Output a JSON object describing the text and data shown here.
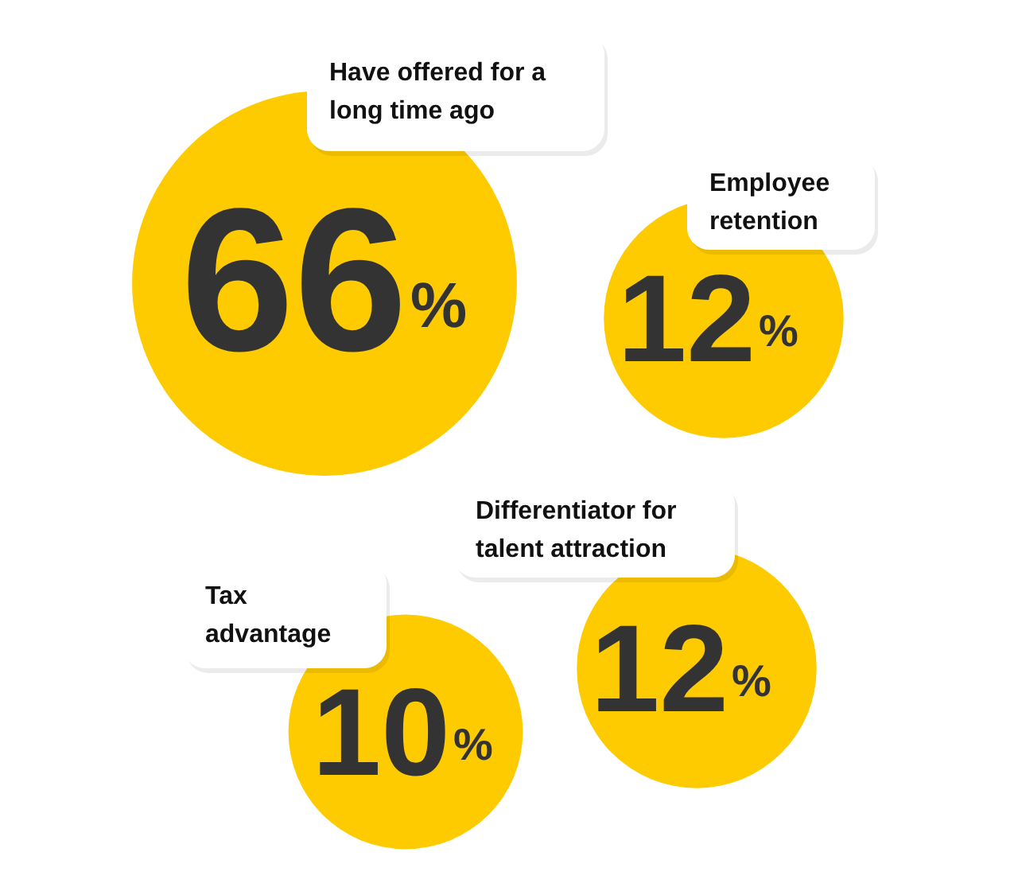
{
  "chart_data": {
    "type": "other",
    "categories": [
      "Have offered for a\nlong time ago",
      "Employee\nretention",
      "Differentiator for\ntalent attraction",
      "Tax\nadvantage"
    ],
    "values": [
      66,
      12,
      12,
      10
    ],
    "value_labels": [
      "66%",
      "12%",
      "12%",
      "10%"
    ],
    "color": "#fecb00"
  }
}
